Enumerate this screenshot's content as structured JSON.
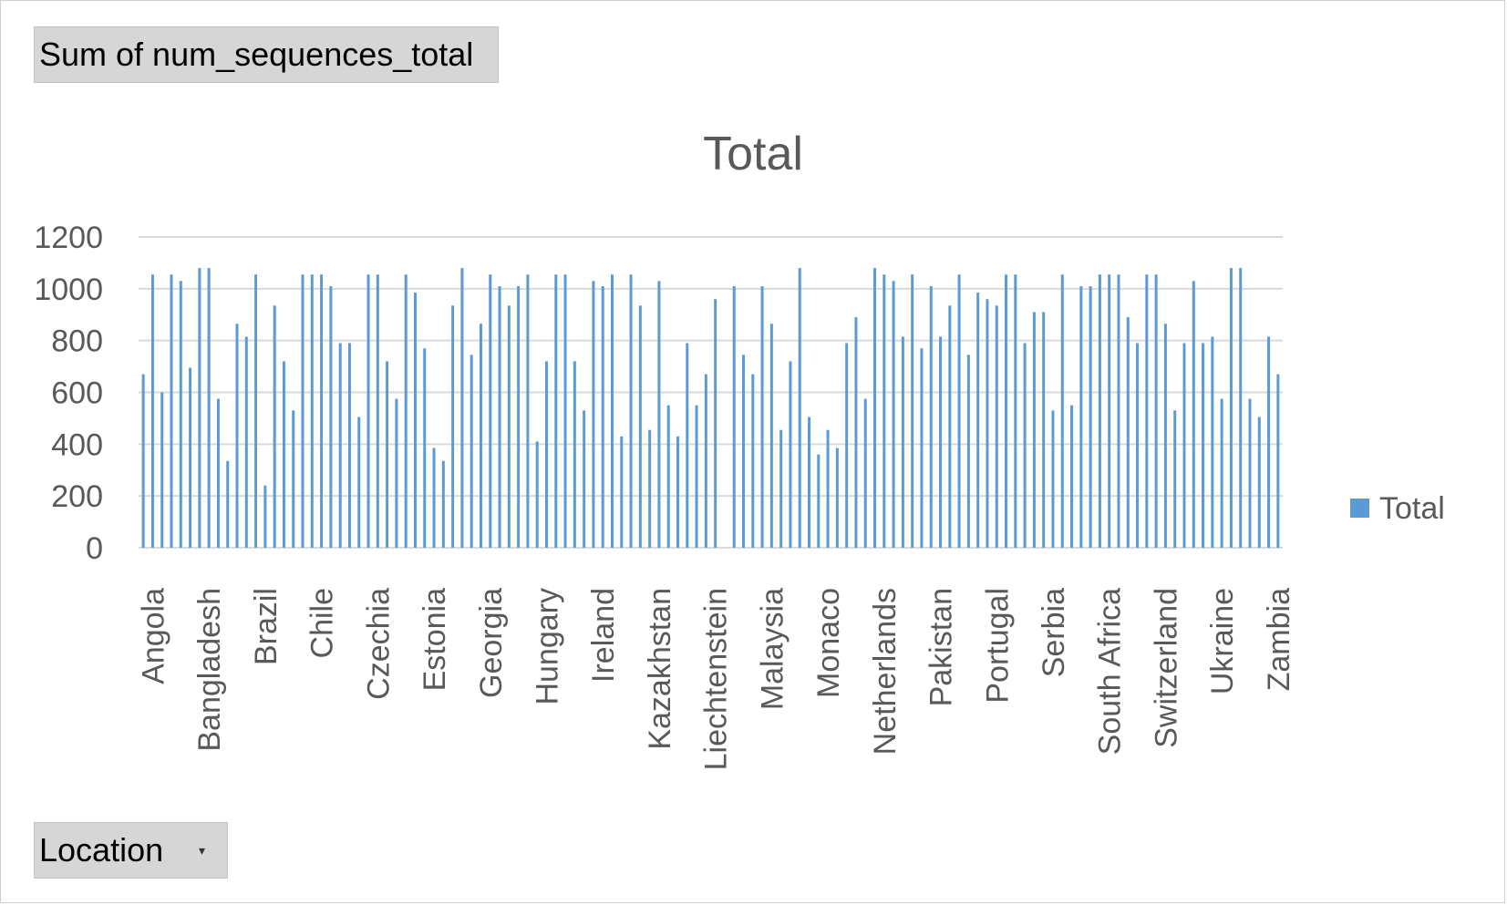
{
  "pivot_buttons": {
    "values_field": "Sum of num_sequences_total",
    "axis_field": "Location",
    "axis_dropdown_glyph": "▾"
  },
  "colors": {
    "bar": "#5b9bd5",
    "grid": "#d9d9d9",
    "text": "#595959"
  },
  "chart_data": {
    "type": "bar",
    "title": "Total",
    "xlabel": "",
    "ylabel": "",
    "ylim": [
      0,
      1200
    ],
    "yticks": [
      0,
      200,
      400,
      600,
      800,
      1000,
      1200
    ],
    "grid": true,
    "legend": {
      "position": "right",
      "entries": [
        "Total"
      ]
    },
    "category_labels": [
      {
        "index": 1,
        "label": "Angola"
      },
      {
        "index": 7,
        "label": "Bangladesh"
      },
      {
        "index": 13,
        "label": "Brazil"
      },
      {
        "index": 19,
        "label": "Chile"
      },
      {
        "index": 25,
        "label": "Czechia"
      },
      {
        "index": 31,
        "label": "Estonia"
      },
      {
        "index": 37,
        "label": "Georgia"
      },
      {
        "index": 43,
        "label": "Hungary"
      },
      {
        "index": 49,
        "label": "Ireland"
      },
      {
        "index": 55,
        "label": "Kazakhstan"
      },
      {
        "index": 61,
        "label": "Liechtenstein"
      },
      {
        "index": 67,
        "label": "Malaysia"
      },
      {
        "index": 73,
        "label": "Monaco"
      },
      {
        "index": 79,
        "label": "Netherlands"
      },
      {
        "index": 85,
        "label": "Pakistan"
      },
      {
        "index": 91,
        "label": "Portugal"
      },
      {
        "index": 97,
        "label": "Serbia"
      },
      {
        "index": 103,
        "label": "South Africa"
      },
      {
        "index": 109,
        "label": "Switzerland"
      },
      {
        "index": 115,
        "label": "Ukraine"
      },
      {
        "index": 121,
        "label": "Zambia"
      }
    ],
    "series": [
      {
        "name": "Total",
        "values": [
          670,
          1055,
          600,
          1055,
          1030,
          695,
          1080,
          1080,
          575,
          335,
          865,
          815,
          1055,
          240,
          935,
          720,
          530,
          1055,
          1055,
          1055,
          1010,
          790,
          790,
          505,
          1055,
          1055,
          720,
          575,
          1055,
          985,
          770,
          385,
          335,
          935,
          1080,
          745,
          865,
          1055,
          1010,
          935,
          1010,
          1055,
          410,
          720,
          1055,
          1055,
          720,
          530,
          1030,
          1010,
          1055,
          430,
          1055,
          935,
          455,
          1030,
          550,
          430,
          790,
          550,
          670,
          960,
          0,
          1010,
          745,
          670,
          1010,
          865,
          455,
          720,
          1080,
          505,
          360,
          455,
          385,
          790,
          890,
          575,
          1080,
          1055,
          1030,
          815,
          1055,
          770,
          1010,
          815,
          935,
          1055,
          745,
          985,
          960,
          935,
          1055,
          1055,
          790,
          910,
          910,
          530,
          1055,
          550,
          1010,
          1010,
          1055,
          1055,
          1055,
          890,
          790,
          1055,
          1055,
          865,
          530,
          790,
          1030,
          790,
          815,
          575,
          1080,
          1080,
          575,
          505,
          815,
          670
        ]
      }
    ]
  }
}
